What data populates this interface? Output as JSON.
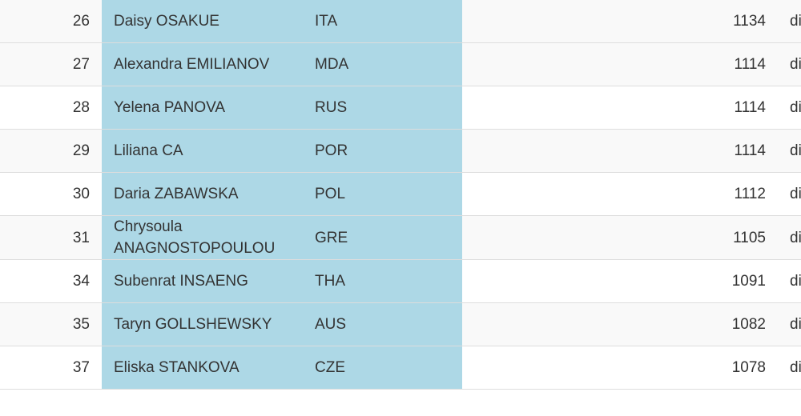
{
  "table": {
    "rows": [
      [
        "26",
        "Daisy OSAKUE",
        "ITA",
        "1134",
        "di"
      ],
      [
        "27",
        "Alexandra EMILIANOV",
        "MDA",
        "1114",
        "di"
      ],
      [
        "28",
        "Yelena PANOVA",
        "RUS",
        "1114",
        "di"
      ],
      [
        "29",
        "Liliana CA",
        "POR",
        "1114",
        "di"
      ],
      [
        "30",
        "Daria ZABAWSKA",
        "POL",
        "1112",
        "di"
      ],
      [
        "31",
        "Chrysoula ANAGNOSTOPOULOU",
        "GRE",
        "1105",
        "di"
      ],
      [
        "34",
        "Subenrat INSAENG",
        "THA",
        "1091",
        "di"
      ],
      [
        "35",
        "Taryn GOLLSHEWSKY",
        "AUS",
        "1082",
        "di"
      ],
      [
        "37",
        "Eliska STANKOVA",
        "CZE",
        "1078",
        "di"
      ]
    ]
  }
}
